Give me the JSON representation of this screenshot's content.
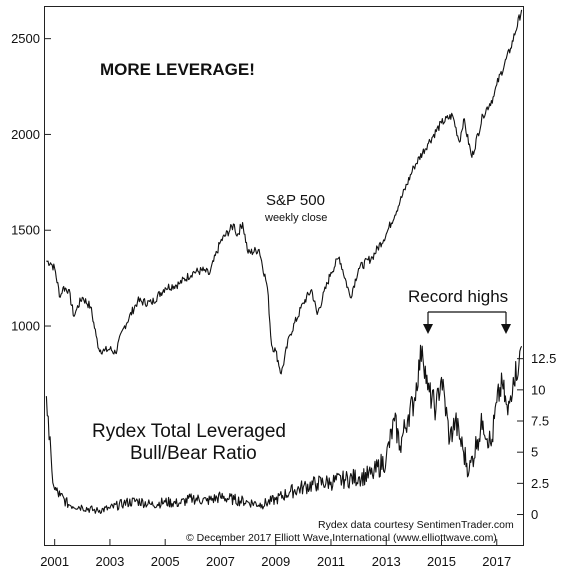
{
  "chart_data": {
    "type": "line",
    "title": "MORE LEVERAGE!",
    "x_ticks": [
      "2001",
      "2003",
      "2005",
      "2007",
      "2009",
      "2011",
      "2013",
      "2015",
      "2017"
    ],
    "annotation": "Record highs",
    "credits": [
      "Rydex data courtesy SentimenTrader.com",
      "© December 2017 Elliott Wave International (www.elliottwave.com)"
    ],
    "panels": [
      {
        "name": "S&P 500",
        "subtitle": "weekly close",
        "axis_side": "left",
        "y_ticks": [
          1000,
          1500,
          2000,
          2500
        ],
        "ylim": [
          760,
          2660
        ],
        "series": {
          "name": "S&P 500",
          "x": [
            2000.7,
            2000.85,
            2001.0,
            2001.2,
            2001.3,
            2001.5,
            2001.7,
            2001.8,
            2002.0,
            2002.3,
            2002.5,
            2002.6,
            2002.8,
            2003.0,
            2003.2,
            2003.5,
            2004.0,
            2004.5,
            2005.0,
            2005.5,
            2006.0,
            2006.4,
            2006.6,
            2007.0,
            2007.5,
            2007.6,
            2007.8,
            2008.0,
            2008.4,
            2008.7,
            2008.85,
            2009.0,
            2009.2,
            2009.5,
            2010.0,
            2010.3,
            2010.5,
            2011.0,
            2011.3,
            2011.7,
            2012.0,
            2012.5,
            2013.0,
            2013.5,
            2014.0,
            2014.5,
            2015.0,
            2015.4,
            2015.65,
            2015.8,
            2016.1,
            2016.5,
            2016.9,
            2017.0,
            2017.5,
            2017.9
          ],
          "y": [
            1340,
            1330,
            1300,
            1150,
            1200,
            1190,
            1050,
            1090,
            1150,
            1100,
            950,
            880,
            870,
            880,
            860,
            990,
            1130,
            1120,
            1200,
            1220,
            1280,
            1290,
            1270,
            1440,
            1530,
            1470,
            1540,
            1380,
            1400,
            1200,
            900,
            870,
            750,
            950,
            1120,
            1190,
            1060,
            1280,
            1360,
            1150,
            1300,
            1360,
            1480,
            1650,
            1830,
            1950,
            2060,
            2100,
            1960,
            2080,
            1880,
            2100,
            2200,
            2260,
            2450,
            2650
          ]
        }
      },
      {
        "name": "Rydex Total Leveraged Bull/Bear Ratio",
        "axis_side": "right",
        "y_ticks": [
          0,
          2.5,
          5,
          7.5,
          10,
          12.5
        ],
        "ylim": [
          -0.6,
          14.8
        ],
        "series": {
          "name": "Rydex Total Leveraged Bull/Bear Ratio",
          "x": [
            2000.7,
            2000.8,
            2000.9,
            2001.0,
            2001.2,
            2001.5,
            2002.0,
            2002.5,
            2003.0,
            2003.5,
            2004.0,
            2004.5,
            2005.0,
            2005.5,
            2006.0,
            2006.5,
            2007.0,
            2007.5,
            2008.0,
            2008.5,
            2009.0,
            2009.5,
            2010.0,
            2010.5,
            2011.0,
            2011.5,
            2012.0,
            2012.5,
            2013.0,
            2013.3,
            2013.5,
            2013.8,
            2014.0,
            2014.3,
            2014.5,
            2014.8,
            2015.0,
            2015.3,
            2015.5,
            2015.8,
            2016.0,
            2016.3,
            2016.5,
            2016.8,
            2017.0,
            2017.2,
            2017.4,
            2017.6,
            2017.8,
            2017.9
          ],
          "y": [
            9.5,
            6.0,
            3.5,
            2.0,
            1.5,
            0.8,
            0.6,
            0.3,
            0.5,
            0.9,
            1.1,
            0.8,
            1.0,
            0.9,
            1.3,
            1.1,
            1.4,
            1.2,
            1.0,
            0.8,
            1.2,
            1.8,
            2.2,
            2.5,
            2.6,
            2.8,
            3.0,
            3.2,
            4.5,
            7.5,
            5.5,
            8.0,
            9.0,
            13.5,
            10.0,
            8.5,
            11.0,
            6.0,
            7.5,
            5.0,
            3.5,
            6.0,
            7.5,
            5.5,
            9.0,
            10.5,
            8.0,
            11.0,
            12.0,
            13.5
          ]
        }
      }
    ],
    "grid": false
  }
}
